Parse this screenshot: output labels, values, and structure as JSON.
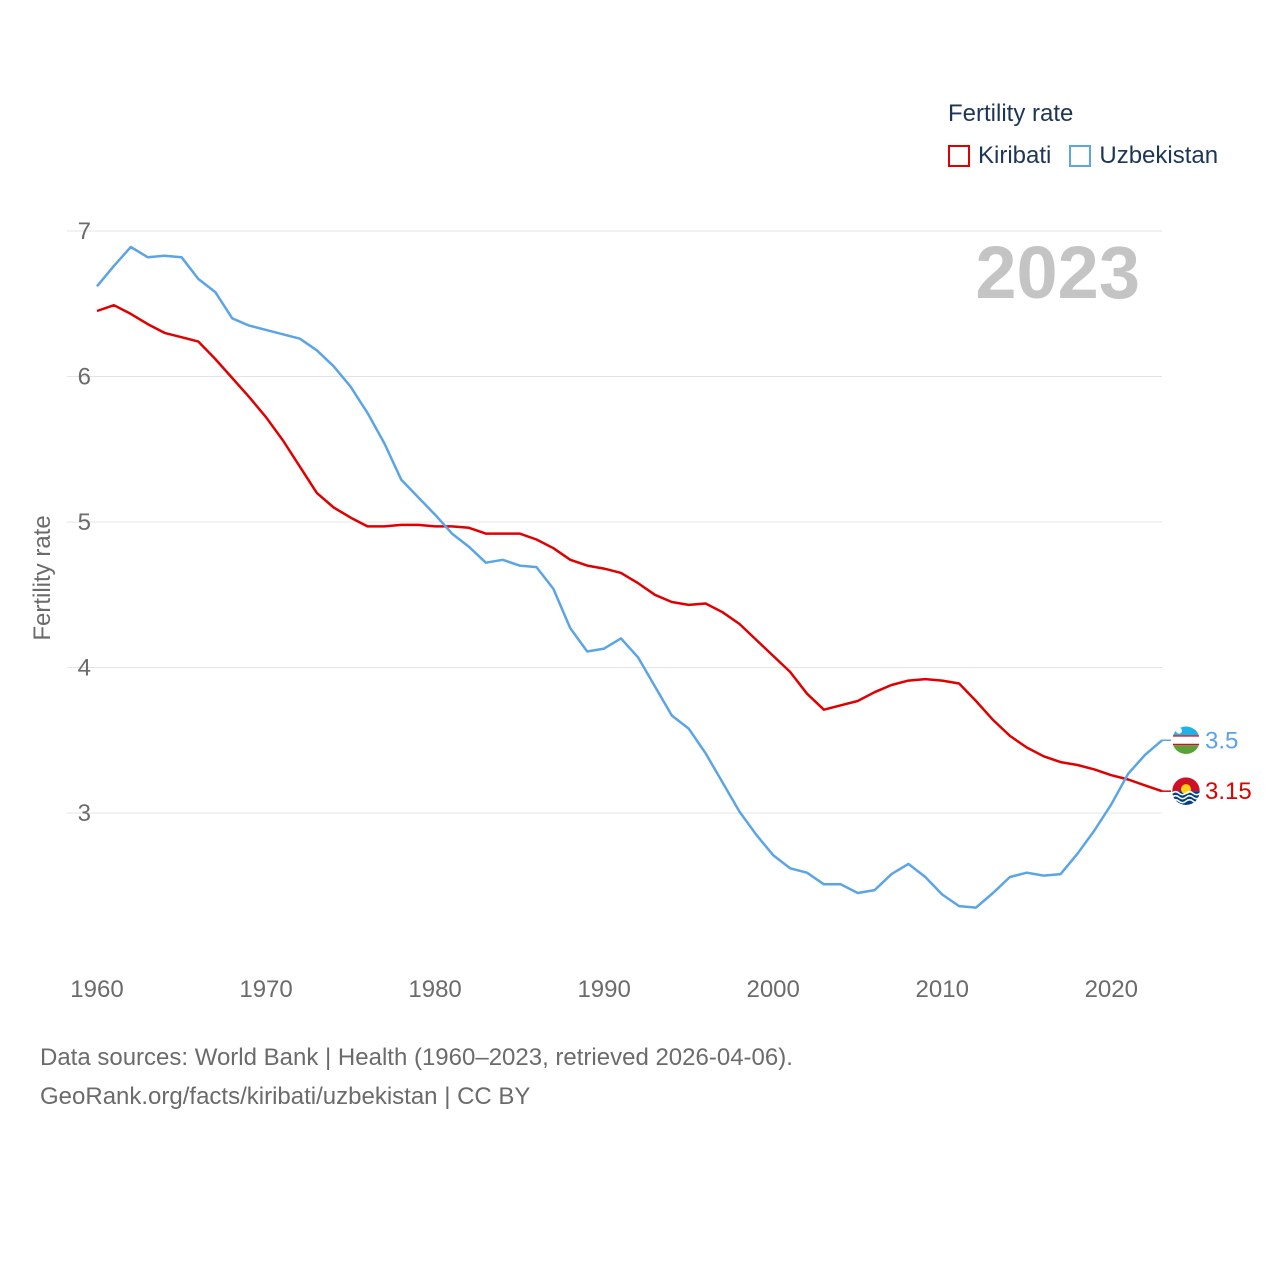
{
  "chart_data": {
    "type": "line",
    "title": "Fertility rate",
    "ylabel": "Fertility rate",
    "xlabel": "",
    "year_stamp": "2023",
    "xlim": [
      1960,
      2023
    ],
    "ylim": [
      2.0,
      7.0
    ],
    "grid": true,
    "x_ticks": [
      1960,
      1970,
      1980,
      1990,
      2000,
      2010,
      2020
    ],
    "y_ticks": [
      3,
      4,
      5,
      6,
      7
    ],
    "x": [
      1960,
      1961,
      1962,
      1963,
      1964,
      1965,
      1966,
      1967,
      1968,
      1969,
      1970,
      1971,
      1972,
      1973,
      1974,
      1975,
      1976,
      1977,
      1978,
      1979,
      1980,
      1981,
      1982,
      1983,
      1984,
      1985,
      1986,
      1987,
      1988,
      1989,
      1990,
      1991,
      1992,
      1993,
      1994,
      1995,
      1996,
      1997,
      1998,
      1999,
      2000,
      2001,
      2002,
      2003,
      2004,
      2005,
      2006,
      2007,
      2008,
      2009,
      2010,
      2011,
      2012,
      2013,
      2014,
      2015,
      2016,
      2017,
      2018,
      2019,
      2020,
      2021,
      2022,
      2023
    ],
    "series": [
      {
        "name": "Kiribati",
        "color": "#e00000",
        "end_label": "3.15",
        "flag": "kiribati-flag",
        "values": [
          6.45,
          6.49,
          6.43,
          6.36,
          6.3,
          6.27,
          6.24,
          6.12,
          5.99,
          5.86,
          5.72,
          5.56,
          5.38,
          5.2,
          5.1,
          5.03,
          4.97,
          4.97,
          4.98,
          4.98,
          4.97,
          4.97,
          4.96,
          4.92,
          4.92,
          4.92,
          4.88,
          4.82,
          4.74,
          4.7,
          4.68,
          4.65,
          4.58,
          4.5,
          4.45,
          4.43,
          4.44,
          4.38,
          4.3,
          4.19,
          4.08,
          3.97,
          3.82,
          3.71,
          3.74,
          3.77,
          3.83,
          3.88,
          3.91,
          3.92,
          3.91,
          3.89,
          3.77,
          3.64,
          3.53,
          3.45,
          3.39,
          3.35,
          3.33,
          3.3,
          3.26,
          3.23,
          3.19,
          3.15
        ]
      },
      {
        "name": "Uzbekistan",
        "color": "#5ba4e6",
        "end_label": "3.5",
        "flag": "uzbekistan-flag",
        "values": [
          6.62,
          6.76,
          6.89,
          6.82,
          6.83,
          6.82,
          6.67,
          6.58,
          6.4,
          6.35,
          6.32,
          6.29,
          6.26,
          6.18,
          6.07,
          5.93,
          5.75,
          5.54,
          5.29,
          5.17,
          5.05,
          4.92,
          4.83,
          4.72,
          4.74,
          4.7,
          4.69,
          4.54,
          4.27,
          4.11,
          4.13,
          4.2,
          4.07,
          3.87,
          3.67,
          3.58,
          3.41,
          3.21,
          3.01,
          2.85,
          2.71,
          2.62,
          2.59,
          2.51,
          2.51,
          2.45,
          2.47,
          2.58,
          2.65,
          2.56,
          2.44,
          2.36,
          2.35,
          2.45,
          2.56,
          2.59,
          2.57,
          2.58,
          2.72,
          2.88,
          3.06,
          3.27,
          3.4,
          3.5
        ]
      }
    ]
  },
  "legend": {
    "title": "Fertility rate",
    "items": [
      {
        "label": "Kiribati",
        "color": "#e00000"
      },
      {
        "label": "Uzbekistan",
        "color": "#5ba4e6"
      }
    ]
  },
  "footer": {
    "line1": "Data sources: World Bank | Health (1960–2023, retrieved 2026-04-06).",
    "line2": "GeoRank.org/facts/kiribati/uzbekistan | CC BY"
  }
}
